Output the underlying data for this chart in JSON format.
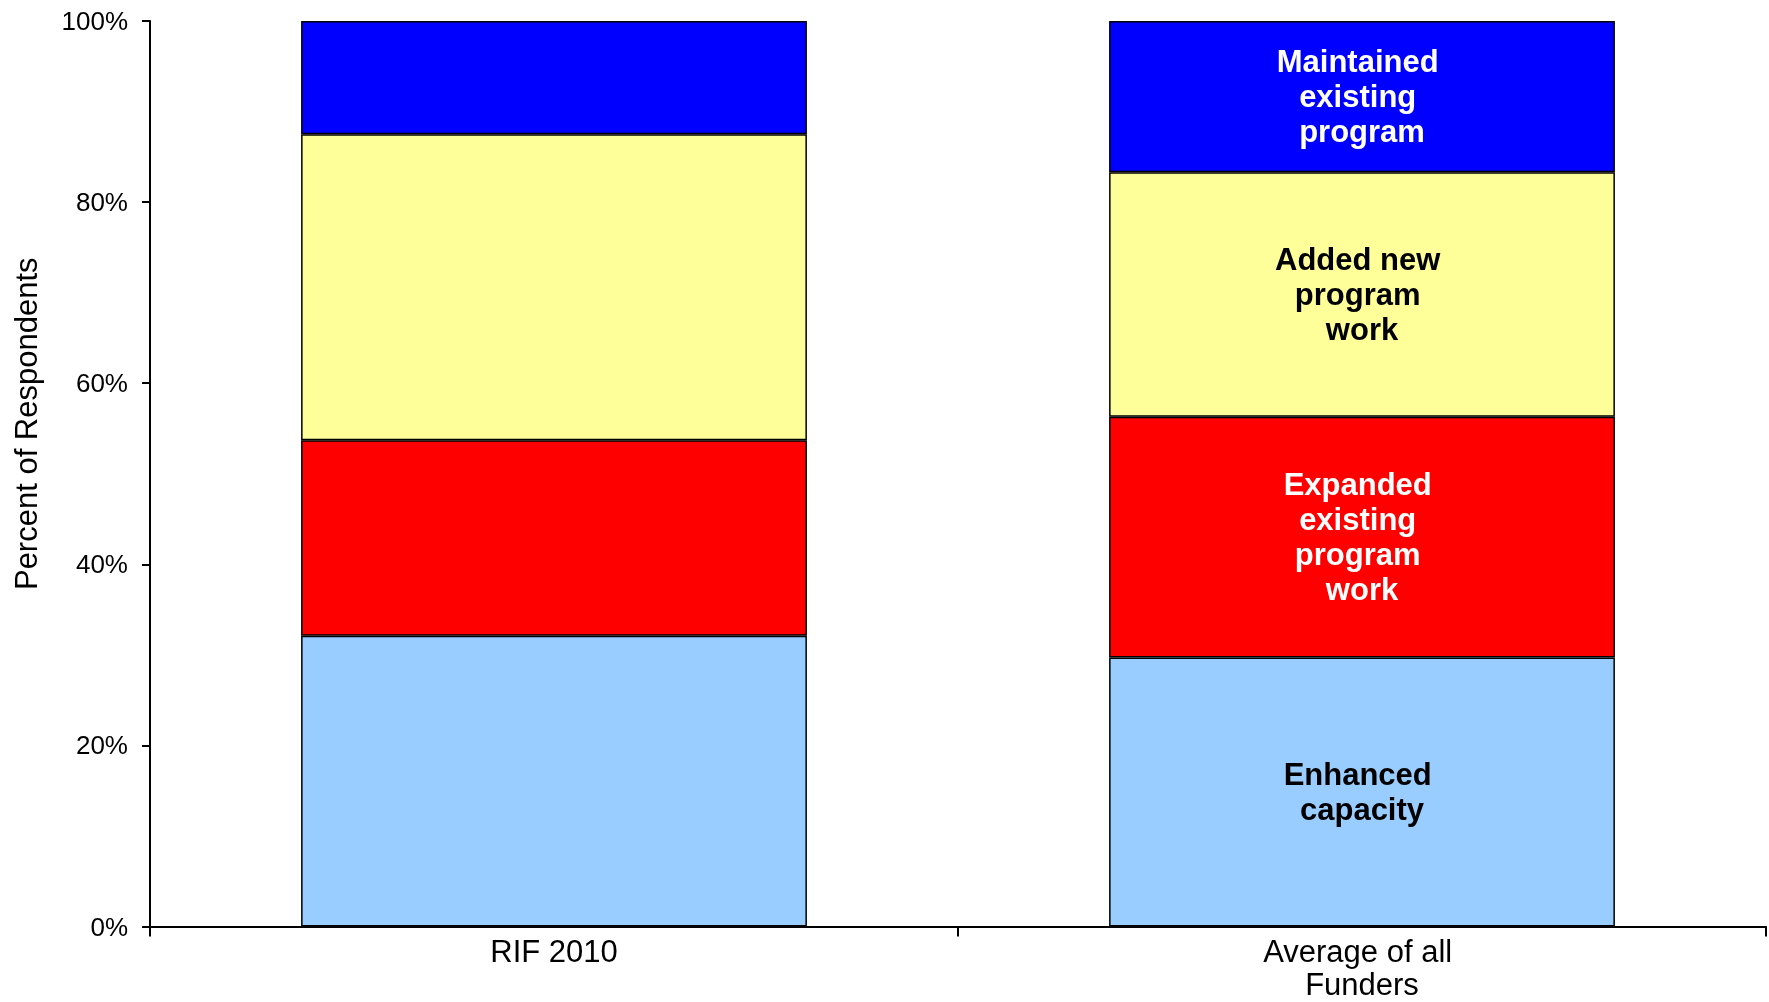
{
  "chart_data": {
    "type": "bar",
    "stacked": true,
    "categories": [
      "RIF 2010",
      "Average of all Funders"
    ],
    "ylabel": "Percent of Respondents",
    "ylim": [
      0,
      100
    ],
    "yticks": [
      {
        "value": 0,
        "label": "0%"
      },
      {
        "value": 20,
        "label": "20%"
      },
      {
        "value": 40,
        "label": "40%"
      },
      {
        "value": 60,
        "label": "60%"
      },
      {
        "value": 80,
        "label": "80%"
      },
      {
        "value": 100,
        "label": "100%"
      }
    ],
    "grid": false,
    "legend": false,
    "series": [
      {
        "name": "Enhanced capacity",
        "color": "#99ccff",
        "values": [
          32.1,
          29.7
        ]
      },
      {
        "name": "Expanded existing program work",
        "color": "#ff0000",
        "values": [
          21.6,
          26.6
        ]
      },
      {
        "name": "Added new program work",
        "color": "#ffff99",
        "values": [
          33.8,
          27.0
        ]
      },
      {
        "name": "Maintained existing program",
        "color": "#0000ff",
        "values": [
          12.5,
          16.7
        ]
      }
    ]
  }
}
